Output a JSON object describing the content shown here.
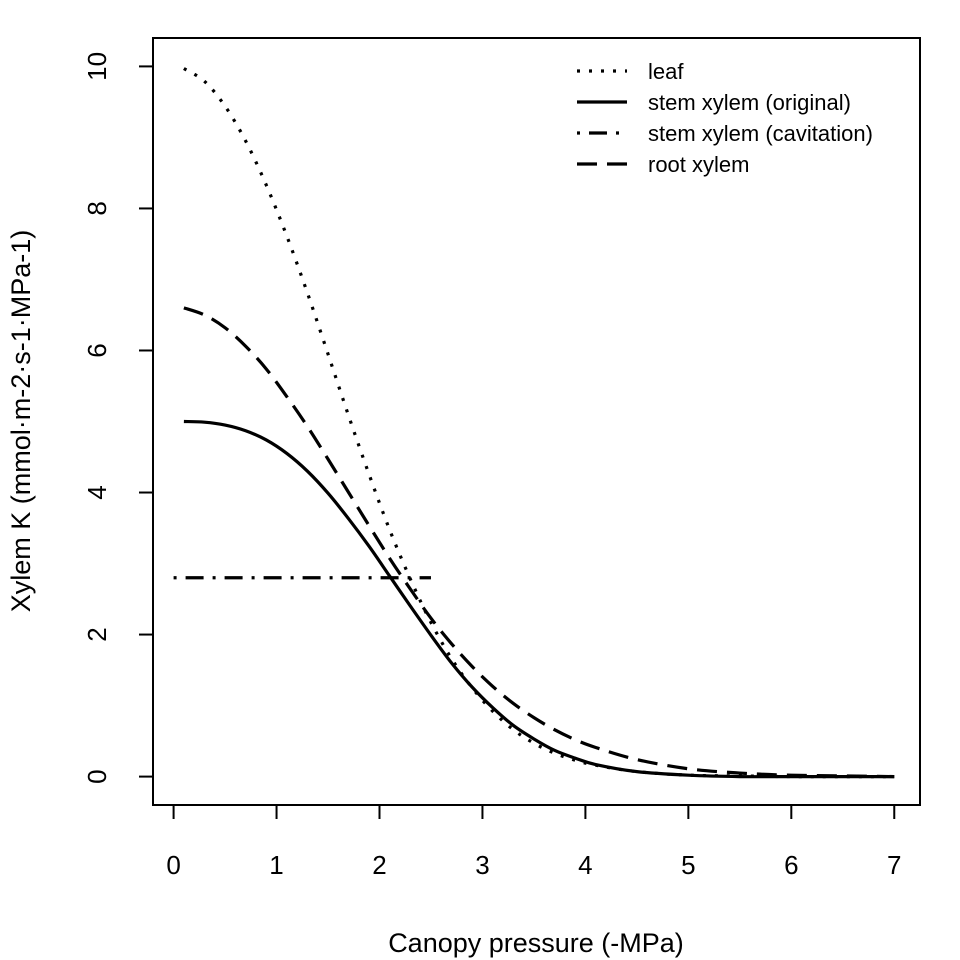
{
  "chart_data": {
    "type": "line",
    "title": "",
    "xlabel": "Canopy pressure (-MPa)",
    "ylabel": "Xylem K (mmol·m-2·s-1·MPa-1)",
    "xlim": [
      -0.2,
      7.25
    ],
    "ylim": [
      -0.4,
      10.4
    ],
    "x_ticks": [
      "0",
      "1",
      "2",
      "3",
      "4",
      "5",
      "6",
      "7"
    ],
    "y_ticks": [
      "0",
      "2",
      "4",
      "6",
      "8",
      "10"
    ],
    "grid": false,
    "legend_position": "top-right",
    "series": [
      {
        "name": "leaf",
        "line_style": "dotted",
        "x": [
          0.1,
          0.3,
          0.5,
          0.7,
          0.9,
          1.1,
          1.3,
          1.5,
          1.7,
          1.9,
          2.1,
          2.3,
          2.5,
          2.7,
          2.9,
          3.1,
          3.3,
          3.5,
          3.7,
          3.9,
          4.1,
          4.5,
          5.0,
          5.5,
          6.0,
          7.0
        ],
        "values": [
          9.97,
          9.79,
          9.44,
          8.95,
          8.33,
          7.61,
          6.81,
          5.95,
          5.08,
          4.25,
          3.47,
          2.78,
          2.17,
          1.66,
          1.25,
          0.92,
          0.66,
          0.47,
          0.33,
          0.23,
          0.16,
          0.07,
          0.02,
          0.01,
          0.0,
          0.0
        ]
      },
      {
        "name": "stem xylem (original)",
        "line_style": "solid",
        "x": [
          0.1,
          0.3,
          0.5,
          0.7,
          0.9,
          1.1,
          1.3,
          1.5,
          1.7,
          1.9,
          2.1,
          2.3,
          2.5,
          2.7,
          2.9,
          3.1,
          3.3,
          3.5,
          3.7,
          3.9,
          4.1,
          4.5,
          5.0,
          5.5,
          6.0,
          7.0
        ],
        "values": [
          5.0,
          4.99,
          4.95,
          4.87,
          4.74,
          4.55,
          4.3,
          3.99,
          3.63,
          3.24,
          2.82,
          2.4,
          1.99,
          1.6,
          1.26,
          0.97,
          0.72,
          0.53,
          0.37,
          0.26,
          0.17,
          0.07,
          0.02,
          0.0,
          0.0,
          0.0
        ]
      },
      {
        "name": "stem xylem (cavitation)",
        "line_style": "dotdash",
        "x": [
          0.0,
          2.5
        ],
        "values": [
          2.8,
          2.8
        ]
      },
      {
        "name": "root xylem",
        "line_style": "dashed",
        "x": [
          0.1,
          0.3,
          0.5,
          0.7,
          0.9,
          1.1,
          1.3,
          1.5,
          1.7,
          1.9,
          2.1,
          2.3,
          2.5,
          2.7,
          2.9,
          3.1,
          3.3,
          3.5,
          3.7,
          3.9,
          4.1,
          4.5,
          5.0,
          5.5,
          6.0,
          7.0
        ],
        "values": [
          6.6,
          6.5,
          6.32,
          6.06,
          5.74,
          5.35,
          4.93,
          4.47,
          4.0,
          3.53,
          3.07,
          2.64,
          2.23,
          1.87,
          1.55,
          1.27,
          1.03,
          0.83,
          0.66,
          0.52,
          0.41,
          0.24,
          0.11,
          0.05,
          0.02,
          0.0
        ]
      }
    ]
  }
}
